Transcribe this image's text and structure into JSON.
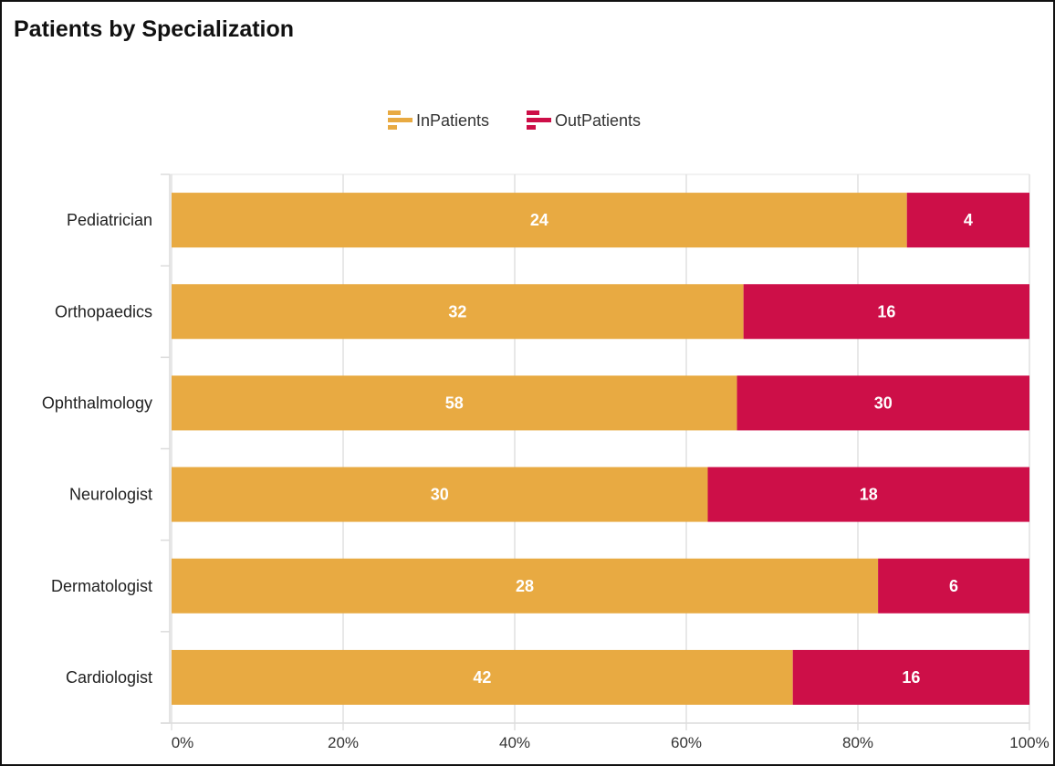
{
  "chart_data": {
    "type": "bar",
    "orientation": "horizontal",
    "stacking": "100%",
    "title": "Patients by Specialization",
    "categories": [
      "Pediatrician",
      "Orthopaedics",
      "Ophthalmology",
      "Neurologist",
      "Dermatologist",
      "Cardiologist"
    ],
    "series": [
      {
        "name": "InPatients",
        "color": "#E8AA42",
        "values": [
          24,
          32,
          58,
          30,
          28,
          42
        ]
      },
      {
        "name": "OutPatients",
        "color": "#CD0F48",
        "values": [
          4,
          16,
          30,
          18,
          6,
          16
        ]
      }
    ],
    "x_ticks": [
      "0%",
      "20%",
      "40%",
      "60%",
      "80%",
      "100%"
    ],
    "xlim": [
      0,
      100
    ],
    "legend": "top-center",
    "grid": true
  }
}
